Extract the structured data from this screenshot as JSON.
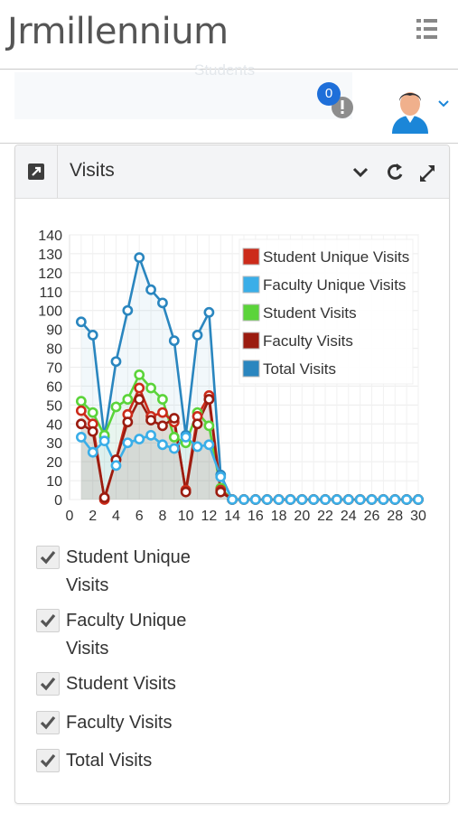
{
  "app": {
    "title": "Jrmillennium"
  },
  "subheader": {
    "faded_label": "Students"
  },
  "notifications": {
    "count": "0"
  },
  "panel": {
    "title": "Visits",
    "tools": [
      "collapse-icon",
      "refresh-icon",
      "fullscreen-icon"
    ]
  },
  "chart_data": {
    "type": "line",
    "x": [
      1,
      2,
      3,
      4,
      5,
      6,
      7,
      8,
      9,
      10,
      11,
      12,
      13,
      14,
      15,
      16,
      17,
      18,
      19,
      20,
      21,
      22,
      23,
      24,
      25,
      26,
      27,
      28,
      29,
      30
    ],
    "xticks": [
      "0",
      "2",
      "4",
      "6",
      "8",
      "10",
      "12",
      "14",
      "16",
      "18",
      "20",
      "22",
      "24",
      "26",
      "28",
      "30"
    ],
    "yticks": [
      "0",
      "10",
      "20",
      "30",
      "40",
      "50",
      "60",
      "70",
      "80",
      "90",
      "100",
      "110",
      "120",
      "130",
      "140"
    ],
    "xlim": [
      0,
      30
    ],
    "ylim": [
      0,
      140
    ],
    "grid": true,
    "legend_position": "top-right",
    "series": [
      {
        "name": "Student Unique Visits",
        "color": "#cc2b1a",
        "values": [
          47,
          40,
          0,
          21,
          45,
          59,
          44,
          46,
          41,
          5,
          44,
          55,
          5,
          0,
          0,
          0,
          0,
          0,
          0,
          0,
          0,
          0,
          0,
          0,
          0,
          0,
          0,
          0,
          0,
          0
        ]
      },
      {
        "name": "Faculty Unique Visits",
        "color": "#3aaee8",
        "values": [
          33,
          25,
          31,
          18,
          30,
          32,
          34,
          29,
          27,
          33,
          28,
          29,
          12,
          0,
          0,
          0,
          0,
          0,
          0,
          0,
          0,
          0,
          0,
          0,
          0,
          0,
          0,
          0,
          0,
          0
        ]
      },
      {
        "name": "Student Visits",
        "color": "#5bd43a",
        "values": [
          52,
          46,
          34,
          49,
          53,
          66,
          59,
          53,
          33,
          30,
          46,
          39,
          6,
          0,
          0,
          0,
          0,
          0,
          0,
          0,
          0,
          0,
          0,
          0,
          0,
          0,
          0,
          0,
          0,
          0
        ]
      },
      {
        "name": "Faculty Visits",
        "color": "#9b1c10",
        "values": [
          40,
          36,
          1,
          21,
          41,
          53,
          42,
          39,
          43,
          4,
          40,
          53,
          4,
          0,
          0,
          0,
          0,
          0,
          0,
          0,
          0,
          0,
          0,
          0,
          0,
          0,
          0,
          0,
          0,
          0
        ]
      },
      {
        "name": "Total Visits",
        "color": "#2a86bf",
        "values": [
          94,
          87,
          33,
          73,
          100,
          128,
          111,
          104,
          84,
          34,
          87,
          99,
          13,
          0,
          0,
          0,
          0,
          0,
          0,
          0,
          0,
          0,
          0,
          0,
          0,
          0,
          0,
          0,
          0,
          0
        ]
      }
    ]
  },
  "toggles": [
    {
      "label": "Student Unique Visits",
      "checked": true
    },
    {
      "label": "Faculty Unique Visits",
      "checked": true
    },
    {
      "label": "Student Visits",
      "checked": true
    },
    {
      "label": "Faculty Visits",
      "checked": true
    },
    {
      "label": "Total Visits",
      "checked": true
    }
  ]
}
